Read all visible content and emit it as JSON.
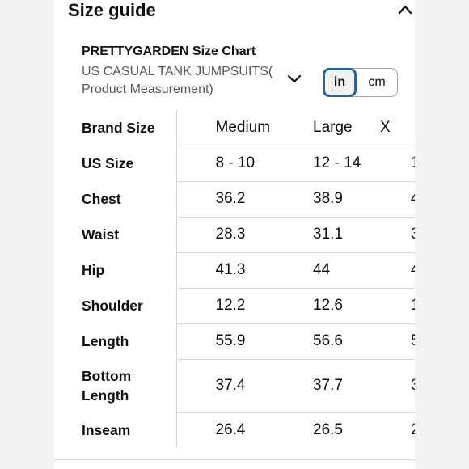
{
  "size_guide": {
    "title": "Size guide",
    "collapse_icon": "chevron-up-icon"
  },
  "chart": {
    "brand_title": "PRETTYGARDEN Size Chart",
    "selected_chart": "US CASUAL TANK JUMPSUITS( Product Measurement)",
    "dropdown_icon": "chevron-down-icon",
    "units": {
      "in": "in",
      "cm": "cm",
      "selected": "in"
    }
  },
  "table": {
    "header_label": "Brand Size",
    "columns": [
      "Medium",
      "Large",
      "X"
    ],
    "rows": [
      {
        "label": "US Size",
        "values": [
          "8 - 10",
          "12 - 14",
          "1"
        ]
      },
      {
        "label": "Chest",
        "values": [
          "36.2",
          "38.9",
          "4"
        ]
      },
      {
        "label": "Waist",
        "values": [
          "28.3",
          "31.1",
          "3"
        ]
      },
      {
        "label": "Hip",
        "values": [
          "41.3",
          "44",
          "4"
        ]
      },
      {
        "label": "Shoulder",
        "values": [
          "12.2",
          "12.6",
          "1"
        ]
      },
      {
        "label": "Length",
        "values": [
          "55.9",
          "56.6",
          "5"
        ]
      },
      {
        "label": "Bottom Length",
        "values": [
          "37.4",
          "37.7",
          "3"
        ]
      },
      {
        "label": "Inseam",
        "values": [
          "26.4",
          "26.5",
          "2"
        ]
      }
    ]
  }
}
